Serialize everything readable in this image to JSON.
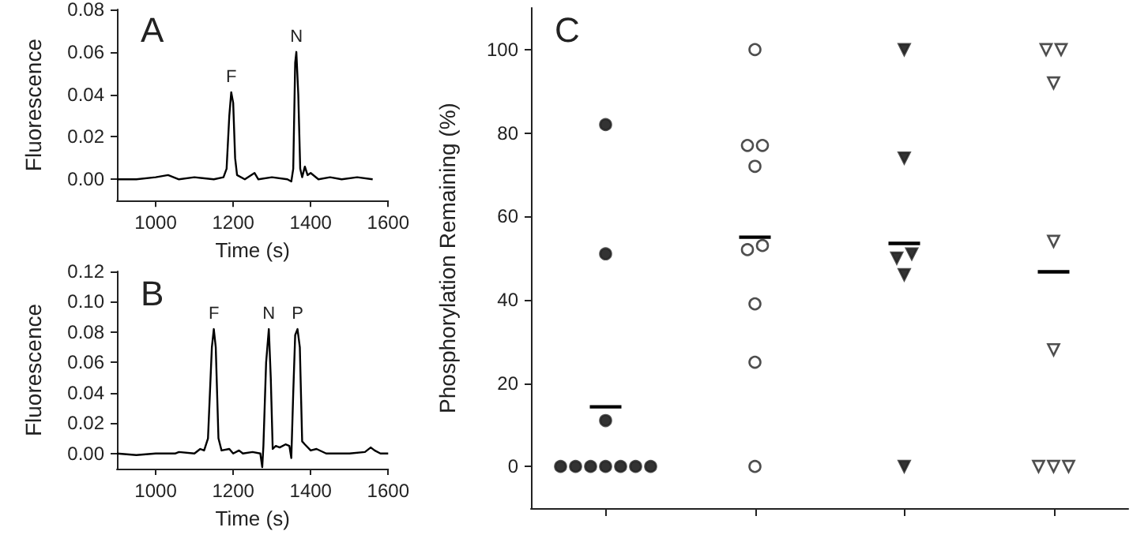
{
  "chart_data": [
    {
      "type": "line",
      "title": "A",
      "xlabel": "Time (s)",
      "ylabel": "Fluorescence",
      "xlim": [
        900,
        1600
      ],
      "xticks": [
        1000,
        1200,
        1400,
        1600
      ],
      "ylim": [
        -0.01,
        0.08
      ],
      "yticks": [
        {
          "value": 0,
          "label": "0.00"
        },
        {
          "value": 0.02,
          "label": "0.02"
        },
        {
          "value": 0.04,
          "label": "0.04"
        },
        {
          "value": 0.06,
          "label": "0.06"
        },
        {
          "value": 0.08,
          "label": "0.08"
        }
      ],
      "annotations": [
        "F",
        "N"
      ],
      "series": [
        {
          "color": "#000000",
          "x": [
            900,
            950,
            1000,
            1032,
            1060,
            1100,
            1150,
            1175,
            1183,
            1190,
            1195,
            1200,
            1205,
            1210,
            1230,
            1255,
            1265,
            1300,
            1340,
            1350,
            1355,
            1360,
            1363,
            1368,
            1373,
            1378,
            1385,
            1392,
            1400,
            1420,
            1450,
            1480,
            1520,
            1560
          ],
          "values": [
            0,
            0,
            0.001,
            0.002,
            0,
            0.001,
            0,
            0.001,
            0.005,
            0.03,
            0.041,
            0.036,
            0.01,
            0.002,
            0,
            0.003,
            0,
            0.001,
            0,
            -0.001,
            0.005,
            0.055,
            0.06,
            0.04,
            0.005,
            0.001,
            0.006,
            0.002,
            0.003,
            0,
            0.001,
            0,
            0.001,
            0
          ]
        }
      ]
    },
    {
      "type": "line",
      "title": "B",
      "xlabel": "Time (s)",
      "ylabel": "Fluorescence",
      "xlim": [
        900,
        1600
      ],
      "xticks": [
        1000,
        1200,
        1400,
        1600
      ],
      "ylim": [
        -0.01,
        0.12
      ],
      "yticks": [
        {
          "value": 0,
          "label": "0.00"
        },
        {
          "value": 0.02,
          "label": "0.02"
        },
        {
          "value": 0.04,
          "label": "0.04"
        },
        {
          "value": 0.06,
          "label": "0.06"
        },
        {
          "value": 0.08,
          "label": "0.08"
        },
        {
          "value": 0.1,
          "label": "0.10"
        },
        {
          "value": 0.12,
          "label": "0.12"
        }
      ],
      "annotations": [
        "F",
        "N",
        "P"
      ],
      "series": [
        {
          "color": "#000000",
          "x": [
            900,
            950,
            1000,
            1050,
            1060,
            1100,
            1115,
            1125,
            1135,
            1145,
            1150,
            1155,
            1162,
            1170,
            1190,
            1200,
            1215,
            1225,
            1250,
            1270,
            1275,
            1278,
            1285,
            1292,
            1297,
            1302,
            1310,
            1320,
            1335,
            1345,
            1350,
            1355,
            1360,
            1366,
            1372,
            1378,
            1385,
            1400,
            1415,
            1440,
            1500,
            1540,
            1555,
            1565,
            1580,
            1600
          ],
          "values": [
            0,
            -0.001,
            0,
            0,
            0.001,
            0,
            0.003,
            0.002,
            0.01,
            0.07,
            0.082,
            0.07,
            0.01,
            0.002,
            0.003,
            0,
            0.002,
            0,
            0.001,
            0,
            -0.009,
            0.005,
            0.06,
            0.082,
            0.05,
            0.003,
            0.005,
            0.004,
            0.006,
            0.005,
            -0.003,
            0.04,
            0.078,
            0.082,
            0.07,
            0.008,
            0.006,
            0.002,
            0.003,
            0,
            0,
            0.001,
            0.004,
            0.002,
            0,
            0
          ]
        }
      ]
    },
    {
      "type": "scatter",
      "title": "C",
      "ylabel": "Phosphorylation Remaining (%)",
      "categories": [
        null,
        null,
        null,
        null
      ],
      "ylim": [
        -10,
        110
      ],
      "yticks": [
        0,
        20,
        40,
        60,
        80,
        100
      ],
      "series": [
        {
          "color": "#000000",
          "marker": "circle",
          "values": [
            0,
            null,
            null,
            null
          ]
        },
        {
          "color": "#000000",
          "marker": "circle",
          "values": [
            0,
            null,
            null,
            null
          ]
        },
        {
          "color": "#000000",
          "marker": "circle",
          "values": [
            0,
            null,
            null,
            null
          ]
        },
        {
          "color": "#000000",
          "marker": "circle",
          "values": [
            0,
            null,
            null,
            null
          ]
        },
        {
          "color": "#000000",
          "marker": "circle",
          "values": [
            0,
            null,
            null,
            null
          ]
        },
        {
          "color": "#000000",
          "marker": "circle",
          "values": [
            0,
            null,
            null,
            null
          ]
        },
        {
          "color": "#000000",
          "marker": "circle",
          "values": [
            0,
            null,
            null,
            null
          ]
        },
        {
          "color": "#000000",
          "marker": "circle",
          "values": [
            11,
            null,
            null,
            null
          ]
        },
        {
          "color": "#000000",
          "marker": "circle",
          "values": [
            51,
            null,
            null,
            null
          ]
        },
        {
          "color": "#000000",
          "marker": "circle",
          "values": [
            82,
            null,
            null,
            null
          ]
        },
        {
          "color": "#ffffff",
          "marker": "circle",
          "values": [
            null,
            100,
            null,
            null
          ]
        },
        {
          "color": "#ffffff",
          "marker": "circle",
          "values": [
            null,
            77,
            null,
            null
          ]
        },
        {
          "color": "#ffffff",
          "marker": "circle",
          "values": [
            null,
            77,
            null,
            null
          ]
        },
        {
          "color": "#ffffff",
          "marker": "circle",
          "values": [
            null,
            72,
            null,
            null
          ]
        },
        {
          "color": "#ffffff",
          "marker": "circle",
          "values": [
            null,
            52,
            null,
            null
          ]
        },
        {
          "color": "#ffffff",
          "marker": "circle",
          "values": [
            null,
            53,
            null,
            null
          ]
        },
        {
          "color": "#ffffff",
          "marker": "circle",
          "values": [
            null,
            39,
            null,
            null
          ]
        },
        {
          "color": "#ffffff",
          "marker": "circle",
          "values": [
            null,
            25,
            null,
            null
          ]
        },
        {
          "color": "#ffffff",
          "marker": "circle",
          "values": [
            null,
            0,
            null,
            null
          ]
        },
        {
          "color": "#000000",
          "marker": "triangle",
          "values": [
            null,
            null,
            100,
            null
          ]
        },
        {
          "color": "#000000",
          "marker": "triangle",
          "values": [
            null,
            null,
            74,
            null
          ]
        },
        {
          "color": "#000000",
          "marker": "triangle",
          "values": [
            null,
            null,
            50,
            null
          ]
        },
        {
          "color": "#000000",
          "marker": "triangle",
          "values": [
            null,
            null,
            51,
            null
          ]
        },
        {
          "color": "#000000",
          "marker": "triangle",
          "values": [
            null,
            null,
            46,
            null
          ]
        },
        {
          "color": "#000000",
          "marker": "triangle",
          "values": [
            null,
            null,
            0,
            null
          ]
        },
        {
          "color": "#ffffff",
          "marker": "triangle",
          "values": [
            null,
            null,
            null,
            100
          ]
        },
        {
          "color": "#ffffff",
          "marker": "triangle",
          "values": [
            null,
            null,
            null,
            100
          ]
        },
        {
          "color": "#ffffff",
          "marker": "triangle",
          "values": [
            null,
            null,
            null,
            92
          ]
        },
        {
          "color": "#ffffff",
          "marker": "triangle",
          "values": [
            null,
            null,
            null,
            54
          ]
        },
        {
          "color": "#ffffff",
          "marker": "triangle",
          "values": [
            null,
            null,
            null,
            28
          ]
        },
        {
          "color": "#ffffff",
          "marker": "triangle",
          "values": [
            null,
            null,
            null,
            0
          ]
        },
        {
          "color": "#ffffff",
          "marker": "triangle",
          "values": [
            null,
            null,
            null,
            0
          ]
        },
        {
          "color": "#ffffff",
          "marker": "triangle",
          "values": [
            null,
            null,
            null,
            0
          ]
        },
        {
          "type": "box",
          "color": "#000000",
          "boxes": [
            {
              "low": 14.3,
              "q1": 14.3,
              "median": 14.3,
              "q3": 14.3,
              "high": 14.3
            },
            {
              "low": 55,
              "q1": 55,
              "median": 55,
              "q3": 55,
              "high": 55
            },
            {
              "low": 53.5,
              "q1": 53.5,
              "median": 53.5,
              "q3": 53.5,
              "high": 53.5
            },
            {
              "low": 46.7,
              "q1": 46.7,
              "median": 46.7,
              "q3": 46.7,
              "high": 46.7
            }
          ]
        }
      ]
    }
  ]
}
